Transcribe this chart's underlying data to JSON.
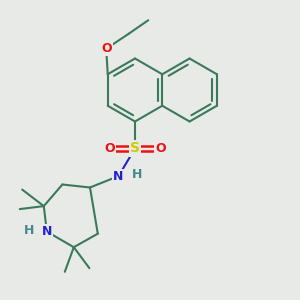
{
  "background_color": "#e8eae8",
  "bond_color": "#3a7a5a",
  "bond_width": 1.5,
  "atom_colors": {
    "O": "#ee1111",
    "S": "#cccc00",
    "N": "#2222cc",
    "H": "#448888",
    "C": "#3a7a5a"
  },
  "figsize": [
    3.0,
    3.0
  ],
  "dpi": 100,
  "xlim": [
    0,
    10
  ],
  "ylim": [
    0,
    10
  ]
}
